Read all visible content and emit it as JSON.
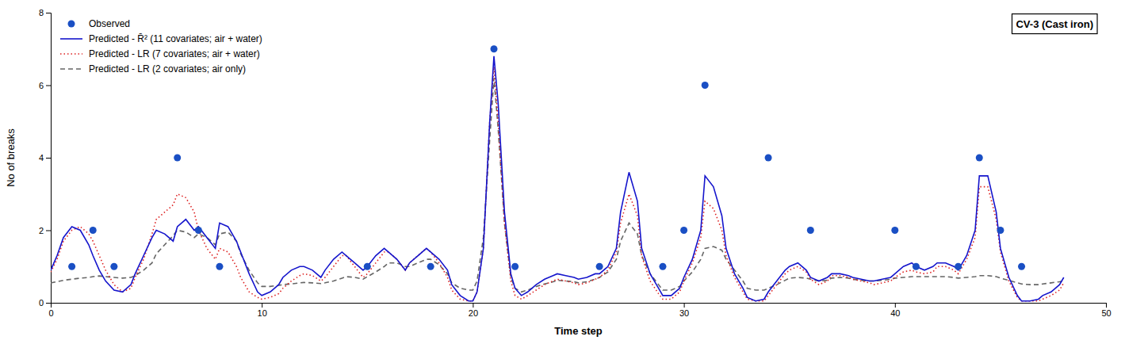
{
  "chart_data": {
    "type": "line",
    "xlabel": "Time step",
    "ylabel": "No of breaks",
    "annotations": [
      "CV-3 (Cast iron)"
    ],
    "xlim": [
      0,
      50
    ],
    "ylim": [
      0,
      8
    ],
    "xticks": [
      0,
      10,
      20,
      30,
      40,
      50
    ],
    "yticks": [
      0,
      2,
      4,
      6,
      8
    ],
    "grid": false,
    "legend": "upper left",
    "series": [
      {
        "name": "Observed",
        "type": "scatter",
        "marker": "circle",
        "color": "#1a4fc4",
        "x": [
          1,
          2,
          3,
          6,
          7,
          8,
          15,
          18,
          21,
          22,
          26,
          29,
          30,
          31,
          34,
          36,
          40,
          41,
          43,
          44,
          45,
          46
        ],
        "values": [
          1,
          2,
          1,
          4,
          2,
          1,
          1,
          1,
          7,
          1,
          1,
          1,
          2,
          6,
          4,
          2,
          2,
          1,
          1,
          4,
          2,
          1
        ]
      },
      {
        "name": "Predicted - R̄² (11 covariates; air + water)",
        "type": "line",
        "line_style": "solid",
        "color": "#1515cc",
        "x": [
          0,
          0.3,
          0.6,
          1,
          1.4,
          1.8,
          2,
          2.3,
          2.6,
          3,
          3.4,
          3.8,
          4,
          4.4,
          4.8,
          5,
          5.4,
          5.8,
          6,
          6.4,
          6.8,
          7,
          7.4,
          7.8,
          8,
          8.4,
          8.8,
          9,
          9.4,
          9.8,
          10,
          10.4,
          10.8,
          11,
          11.4,
          11.8,
          12,
          12.4,
          12.8,
          13,
          13.4,
          13.8,
          14,
          14.4,
          14.8,
          15,
          15.4,
          15.8,
          16,
          16.4,
          16.8,
          17,
          17.4,
          17.8,
          18,
          18.4,
          18.8,
          19,
          19.4,
          19.8,
          20,
          20.2,
          20.5,
          20.8,
          21,
          21.2,
          21.5,
          21.8,
          22,
          22.3,
          22.6,
          23,
          23.4,
          23.8,
          24,
          24.4,
          24.8,
          25,
          25.4,
          25.8,
          26,
          26.4,
          26.8,
          27,
          27.4,
          27.8,
          28,
          28.4,
          28.8,
          29,
          29.4,
          29.8,
          30,
          30.4,
          30.8,
          31,
          31.4,
          31.8,
          32,
          32.4,
          32.8,
          33,
          33.4,
          33.8,
          34,
          34.4,
          34.8,
          35,
          35.4,
          35.8,
          36,
          36.4,
          36.8,
          37,
          37.4,
          37.8,
          38,
          38.4,
          38.8,
          39,
          39.4,
          39.8,
          40,
          40.4,
          40.8,
          41,
          41.4,
          41.8,
          42,
          42.4,
          42.8,
          43,
          43.4,
          43.8,
          44,
          44.4,
          44.8,
          45,
          45.4,
          45.8,
          46,
          46.4,
          46.8,
          47,
          47.4,
          47.8,
          48
        ],
        "values": [
          0.9,
          1.3,
          1.8,
          2.1,
          2.0,
          1.6,
          1.3,
          0.9,
          0.6,
          0.35,
          0.3,
          0.5,
          0.8,
          1.3,
          1.8,
          2.0,
          1.9,
          1.7,
          2.1,
          2.3,
          2.0,
          2.1,
          1.8,
          1.5,
          2.2,
          2.1,
          1.7,
          1.4,
          0.8,
          0.3,
          0.2,
          0.3,
          0.5,
          0.7,
          0.9,
          1.0,
          1.0,
          0.9,
          0.7,
          0.9,
          1.2,
          1.4,
          1.3,
          1.1,
          0.9,
          1.0,
          1.3,
          1.5,
          1.4,
          1.2,
          0.9,
          1.1,
          1.3,
          1.5,
          1.4,
          1.2,
          0.9,
          0.5,
          0.2,
          0.05,
          0.05,
          0.3,
          1.5,
          5.0,
          6.8,
          5.5,
          2.5,
          0.8,
          0.4,
          0.2,
          0.3,
          0.5,
          0.65,
          0.75,
          0.8,
          0.75,
          0.7,
          0.65,
          0.7,
          0.8,
          0.8,
          1.0,
          1.5,
          2.5,
          3.6,
          2.8,
          1.5,
          0.8,
          0.4,
          0.2,
          0.2,
          0.4,
          0.7,
          1.2,
          2.0,
          3.5,
          3.2,
          2.4,
          1.5,
          0.8,
          0.4,
          0.15,
          0.05,
          0.1,
          0.3,
          0.6,
          0.9,
          1.0,
          1.1,
          0.9,
          0.7,
          0.6,
          0.7,
          0.8,
          0.8,
          0.75,
          0.7,
          0.65,
          0.6,
          0.6,
          0.65,
          0.7,
          0.8,
          1.0,
          1.1,
          1.0,
          0.9,
          1.0,
          1.1,
          1.1,
          1.0,
          0.9,
          1.3,
          2.0,
          3.5,
          3.5,
          2.5,
          1.5,
          0.7,
          0.2,
          0.05,
          0.05,
          0.1,
          0.2,
          0.3,
          0.5,
          0.7
        ]
      },
      {
        "name": "Predicted - LR (7 covariates; air + water)",
        "type": "line",
        "line_style": "dotted",
        "color": "#dd2222",
        "x": [
          0,
          0.3,
          0.6,
          1,
          1.4,
          1.8,
          2,
          2.3,
          2.6,
          3,
          3.4,
          3.8,
          4,
          4.4,
          4.8,
          5,
          5.4,
          5.8,
          6,
          6.4,
          6.8,
          7,
          7.4,
          7.8,
          8,
          8.4,
          8.8,
          9,
          9.4,
          9.8,
          10,
          10.4,
          10.8,
          11,
          11.4,
          11.8,
          12,
          12.4,
          12.8,
          13,
          13.4,
          13.8,
          14,
          14.4,
          14.8,
          15,
          15.4,
          15.8,
          16,
          16.4,
          16.8,
          17,
          17.4,
          17.8,
          18,
          18.4,
          18.8,
          19,
          19.4,
          19.8,
          20,
          20.2,
          20.5,
          20.8,
          21,
          21.2,
          21.5,
          21.8,
          22,
          22.3,
          22.6,
          23,
          23.4,
          23.8,
          24,
          24.4,
          24.8,
          25,
          25.4,
          25.8,
          26,
          26.4,
          26.8,
          27,
          27.4,
          27.8,
          28,
          28.4,
          28.8,
          29,
          29.4,
          29.8,
          30,
          30.4,
          30.8,
          31,
          31.4,
          31.8,
          32,
          32.4,
          32.8,
          33,
          33.4,
          33.8,
          34,
          34.4,
          34.8,
          35,
          35.4,
          35.8,
          36,
          36.4,
          36.8,
          37,
          37.4,
          37.8,
          38,
          38.4,
          38.8,
          39,
          39.4,
          39.8,
          40,
          40.4,
          40.8,
          41,
          41.4,
          41.8,
          42,
          42.4,
          42.8,
          43,
          43.4,
          43.8,
          44,
          44.4,
          44.8,
          45,
          45.4,
          45.8,
          46,
          46.4,
          46.8,
          47,
          47.4,
          47.8,
          48
        ],
        "values": [
          0.85,
          1.2,
          1.7,
          2.0,
          2.1,
          1.9,
          1.7,
          1.3,
          0.9,
          0.5,
          0.3,
          0.4,
          0.7,
          1.2,
          1.9,
          2.3,
          2.5,
          2.7,
          3.0,
          2.9,
          2.5,
          2.0,
          1.5,
          1.2,
          1.5,
          1.4,
          1.0,
          0.7,
          0.3,
          0.15,
          0.1,
          0.15,
          0.25,
          0.4,
          0.6,
          0.75,
          0.8,
          0.75,
          0.6,
          0.7,
          1.0,
          1.3,
          1.3,
          1.0,
          0.7,
          0.8,
          1.1,
          1.4,
          1.4,
          1.2,
          0.9,
          1.1,
          1.3,
          1.5,
          1.4,
          1.1,
          0.7,
          0.35,
          0.1,
          0.05,
          0.05,
          0.3,
          1.5,
          5.0,
          6.5,
          5.0,
          2.2,
          0.6,
          0.2,
          0.1,
          0.2,
          0.35,
          0.5,
          0.6,
          0.65,
          0.6,
          0.55,
          0.5,
          0.55,
          0.65,
          0.7,
          0.9,
          1.4,
          2.2,
          3.0,
          2.4,
          1.3,
          0.6,
          0.25,
          0.1,
          0.1,
          0.3,
          0.6,
          1.1,
          1.8,
          2.8,
          2.6,
          2.0,
          1.3,
          0.7,
          0.3,
          0.1,
          0.05,
          0.05,
          0.2,
          0.5,
          0.8,
          0.9,
          1.0,
          0.85,
          0.65,
          0.5,
          0.6,
          0.75,
          0.75,
          0.7,
          0.65,
          0.6,
          0.55,
          0.5,
          0.55,
          0.6,
          0.7,
          0.85,
          0.9,
          0.85,
          0.8,
          0.85,
          1.0,
          1.0,
          0.9,
          0.8,
          1.2,
          1.8,
          3.2,
          3.2,
          2.3,
          1.4,
          0.6,
          0.15,
          0.05,
          0.05,
          0.05,
          0.1,
          0.2,
          0.35,
          0.55
        ]
      },
      {
        "name": "Predicted - LR (2 covariates; air only)",
        "type": "line",
        "line_style": "dashed",
        "color": "#666666",
        "x": [
          0,
          0.3,
          0.6,
          1,
          1.4,
          1.8,
          2,
          2.3,
          2.6,
          3,
          3.4,
          3.8,
          4,
          4.4,
          4.8,
          5,
          5.4,
          5.8,
          6,
          6.4,
          6.8,
          7,
          7.4,
          7.8,
          8,
          8.4,
          8.8,
          9,
          9.4,
          9.8,
          10,
          10.4,
          10.8,
          11,
          11.4,
          11.8,
          12,
          12.4,
          12.8,
          13,
          13.4,
          13.8,
          14,
          14.4,
          14.8,
          15,
          15.4,
          15.8,
          16,
          16.4,
          16.8,
          17,
          17.4,
          17.8,
          18,
          18.4,
          18.8,
          19,
          19.4,
          19.8,
          20,
          20.2,
          20.5,
          20.8,
          21,
          21.2,
          21.5,
          21.8,
          22,
          22.3,
          22.6,
          23,
          23.4,
          23.8,
          24,
          24.4,
          24.8,
          25,
          25.4,
          25.8,
          26,
          26.4,
          26.8,
          27,
          27.4,
          27.8,
          28,
          28.4,
          28.8,
          29,
          29.4,
          29.8,
          30,
          30.4,
          30.8,
          31,
          31.4,
          31.8,
          32,
          32.4,
          32.8,
          33,
          33.4,
          33.8,
          34,
          34.4,
          34.8,
          35,
          35.4,
          35.8,
          36,
          36.4,
          36.8,
          37,
          37.4,
          37.8,
          38,
          38.4,
          38.8,
          39,
          39.4,
          39.8,
          40,
          40.4,
          40.8,
          41,
          41.4,
          41.8,
          42,
          42.4,
          42.8,
          43,
          43.4,
          43.8,
          44,
          44.4,
          44.8,
          45,
          45.4,
          45.8,
          46,
          46.4,
          46.8,
          47,
          47.4,
          47.8,
          48
        ],
        "values": [
          0.55,
          0.58,
          0.62,
          0.65,
          0.68,
          0.7,
          0.72,
          0.74,
          0.72,
          0.7,
          0.68,
          0.7,
          0.75,
          0.9,
          1.1,
          1.35,
          1.6,
          1.85,
          2.0,
          1.95,
          1.8,
          1.9,
          1.8,
          1.6,
          1.9,
          1.95,
          1.7,
          1.35,
          0.9,
          0.55,
          0.45,
          0.45,
          0.48,
          0.5,
          0.52,
          0.55,
          0.56,
          0.55,
          0.53,
          0.55,
          0.6,
          0.68,
          0.72,
          0.7,
          0.65,
          0.72,
          0.85,
          1.0,
          1.1,
          1.1,
          1.0,
          1.0,
          1.1,
          1.2,
          1.2,
          1.05,
          0.8,
          0.55,
          0.4,
          0.35,
          0.35,
          0.6,
          1.8,
          4.5,
          6.2,
          4.8,
          2.2,
          0.7,
          0.4,
          0.3,
          0.35,
          0.45,
          0.52,
          0.58,
          0.62,
          0.6,
          0.58,
          0.55,
          0.58,
          0.65,
          0.7,
          0.85,
          1.2,
          1.7,
          2.2,
          1.9,
          1.3,
          0.8,
          0.5,
          0.35,
          0.35,
          0.45,
          0.6,
          0.85,
          1.2,
          1.5,
          1.55,
          1.45,
          1.2,
          0.9,
          0.6,
          0.4,
          0.35,
          0.35,
          0.4,
          0.5,
          0.62,
          0.68,
          0.7,
          0.68,
          0.65,
          0.6,
          0.62,
          0.68,
          0.7,
          0.68,
          0.65,
          0.62,
          0.6,
          0.6,
          0.62,
          0.65,
          0.68,
          0.7,
          0.72,
          0.72,
          0.72,
          0.72,
          0.72,
          0.72,
          0.7,
          0.68,
          0.7,
          0.72,
          0.75,
          0.75,
          0.72,
          0.68,
          0.62,
          0.55,
          0.52,
          0.5,
          0.5,
          0.52,
          0.55,
          0.58,
          0.62
        ]
      }
    ]
  }
}
